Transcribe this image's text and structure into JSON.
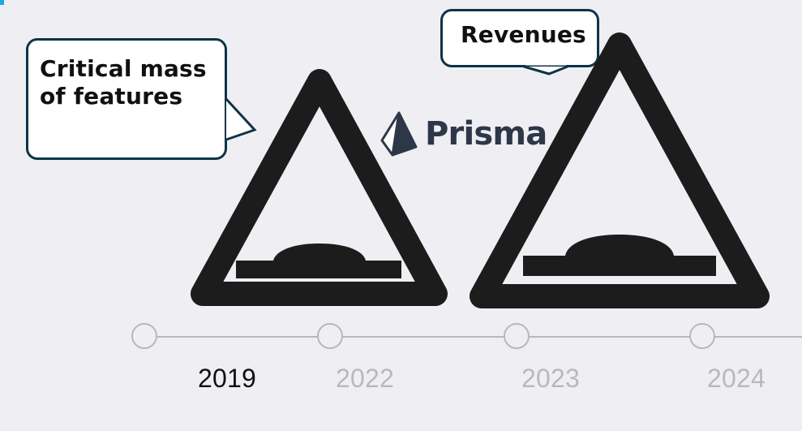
{
  "callouts": {
    "features": "Critical mass\nof features",
    "revenues": "Revenues"
  },
  "logo": {
    "name": "Prisma"
  },
  "timeline": {
    "years": [
      "2019",
      "2022",
      "2023",
      "2024"
    ],
    "selected": "2019"
  },
  "colors": {
    "background": "#efeff3",
    "accent": "#1aa7e6",
    "bubble_border": "#0d3447",
    "logo_text": "#2d3748",
    "muted_year": "#b8b8bd",
    "timeline": "#b7b7bd"
  },
  "icons": {
    "left_sign": "speed-bump-warning-sign-icon",
    "right_sign": "speed-bump-warning-sign-icon",
    "logo": "prisma-logo-icon"
  }
}
